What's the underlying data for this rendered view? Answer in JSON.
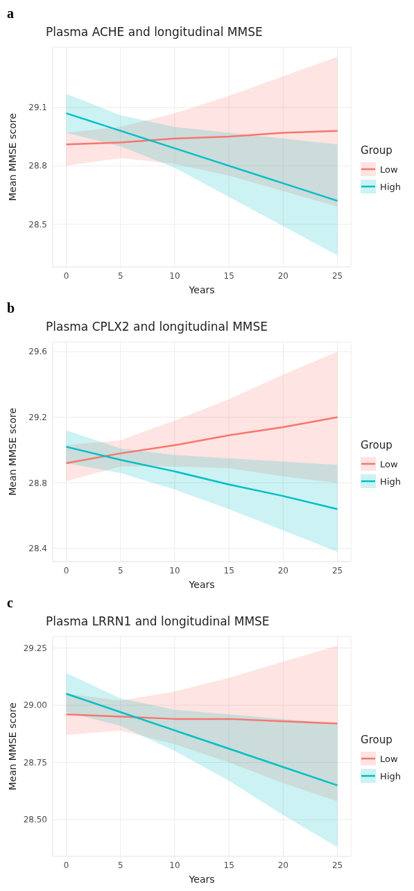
{
  "chart_data": [
    {
      "type": "line",
      "annotations": [
        "a"
      ],
      "title": "Plasma ACHE and longitudinal MMSE",
      "xlabel": "Years",
      "ylabel": "Mean MMSE score",
      "legend_title": "Group",
      "legend": "right",
      "grid": true,
      "x": [
        0,
        5,
        10,
        15,
        20,
        25
      ],
      "xlim": [
        -1.25,
        26.25
      ],
      "xticks": [
        0,
        5,
        10,
        15,
        20,
        25
      ],
      "ylim": [
        28.28,
        29.41
      ],
      "yticks": [
        28.5,
        28.8,
        29.1
      ],
      "series": [
        {
          "name": "Low",
          "color": "#f8766d",
          "values": [
            28.91,
            28.92,
            28.94,
            28.95,
            28.97,
            28.98
          ],
          "lower": [
            28.8,
            28.84,
            28.81,
            28.75,
            28.67,
            28.59
          ],
          "upper": [
            28.97,
            29.0,
            29.07,
            29.16,
            29.26,
            29.36
          ]
        },
        {
          "name": "High",
          "color": "#00bfc4",
          "values": [
            29.07,
            28.98,
            28.89,
            28.8,
            28.71,
            28.62
          ],
          "lower": [
            28.97,
            28.9,
            28.79,
            28.64,
            28.49,
            28.34
          ],
          "upper": [
            29.17,
            29.06,
            29.0,
            28.97,
            28.94,
            28.91
          ]
        }
      ]
    },
    {
      "type": "line",
      "annotations": [
        "b"
      ],
      "title": "Plasma CPLX2 and longitudinal MMSE",
      "xlabel": "Years",
      "ylabel": "Mean MMSE score",
      "legend_title": "Group",
      "legend": "right",
      "grid": true,
      "x": [
        0,
        5,
        10,
        15,
        20,
        25
      ],
      "xlim": [
        -1.25,
        26.25
      ],
      "xticks": [
        0,
        5,
        10,
        15,
        20,
        25
      ],
      "ylim": [
        28.32,
        29.66
      ],
      "yticks": [
        28.4,
        28.8,
        29.2,
        29.6
      ],
      "series": [
        {
          "name": "Low",
          "color": "#f8766d",
          "values": [
            28.92,
            28.98,
            29.03,
            29.09,
            29.14,
            29.2
          ],
          "lower": [
            28.81,
            28.9,
            28.9,
            28.89,
            28.84,
            28.8
          ],
          "upper": [
            29.03,
            29.06,
            29.18,
            29.31,
            29.46,
            29.6
          ]
        },
        {
          "name": "High",
          "color": "#00bfc4",
          "values": [
            29.02,
            28.94,
            28.87,
            28.79,
            28.72,
            28.64
          ],
          "lower": [
            28.92,
            28.86,
            28.76,
            28.64,
            28.51,
            28.38
          ],
          "upper": [
            29.12,
            29.01,
            28.97,
            28.95,
            28.93,
            28.91
          ]
        }
      ]
    },
    {
      "type": "line",
      "annotations": [
        "c"
      ],
      "title": "Plasma LRRN1 and longitudinal MMSE",
      "xlabel": "Years",
      "ylabel": "Mean MMSE score",
      "legend_title": "Group",
      "legend": "right",
      "grid": true,
      "x": [
        0,
        5,
        10,
        15,
        20,
        25
      ],
      "xlim": [
        -1.25,
        26.25
      ],
      "xticks": [
        0,
        5,
        10,
        15,
        20,
        25
      ],
      "ylim": [
        28.34,
        29.3
      ],
      "yticks": [
        {
          "value": 28.5,
          "label": "28.50"
        },
        {
          "value": 28.75,
          "label": "28.75"
        },
        {
          "value": 29.0,
          "label": "29.00"
        },
        {
          "value": 29.25,
          "label": "29.25"
        }
      ],
      "series": [
        {
          "name": "Low",
          "color": "#f8766d",
          "values": [
            28.96,
            28.95,
            28.94,
            28.94,
            28.93,
            28.92
          ],
          "lower": [
            28.87,
            28.89,
            28.83,
            28.75,
            28.66,
            28.58
          ],
          "upper": [
            29.05,
            29.02,
            29.06,
            29.12,
            29.19,
            29.26
          ]
        },
        {
          "name": "High",
          "color": "#00bfc4",
          "values": [
            29.05,
            28.97,
            28.89,
            28.81,
            28.73,
            28.65
          ],
          "lower": [
            28.97,
            28.91,
            28.8,
            28.67,
            28.52,
            28.38
          ],
          "upper": [
            29.14,
            29.03,
            28.98,
            28.96,
            28.94,
            28.92
          ]
        }
      ]
    }
  ]
}
